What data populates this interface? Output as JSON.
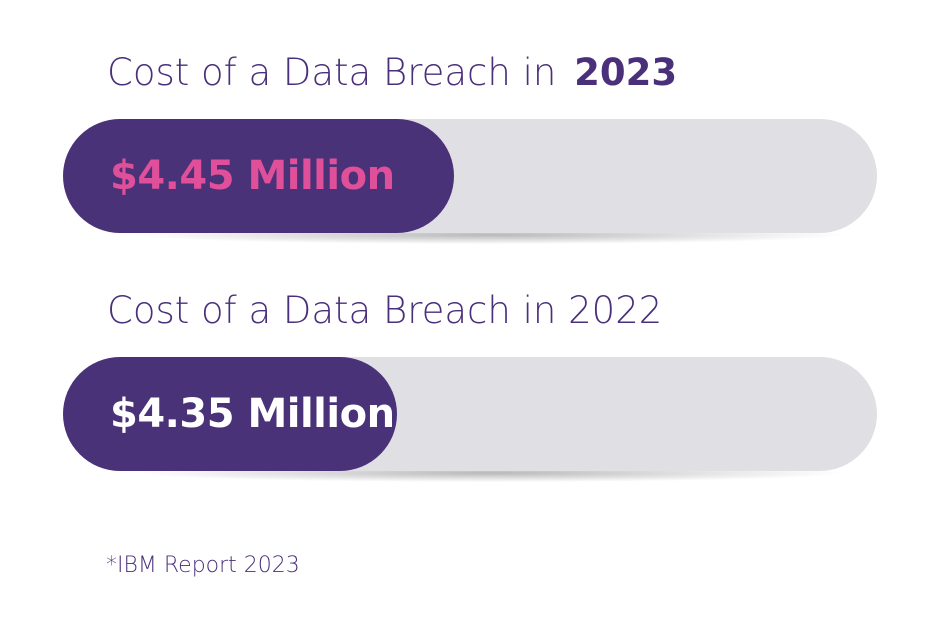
{
  "chart_data": {
    "type": "bar",
    "orientation": "horizontal",
    "categories": [
      "2023",
      "2022"
    ],
    "values": [
      4.45,
      4.35
    ],
    "unit": "Million",
    "bars": [
      {
        "title_prefix": "Cost of a Data Breach in",
        "year": "2023",
        "label": "$4.45 Million",
        "value": 4.45,
        "fill_fraction": 0.48,
        "label_color": "#e0509a",
        "year_bold": true
      },
      {
        "title_prefix": "Cost of a Data Breach in",
        "year": "2022",
        "label": "$4.35 Million",
        "value": 4.35,
        "fill_fraction": 0.41,
        "label_color": "#ffffff",
        "year_bold": false
      }
    ],
    "footnote": "*IBM Report 2023"
  },
  "colors": {
    "bar_fill": "#4a3279",
    "track": "#e0dfe4",
    "title_text": "#4a2f7a",
    "highlight": "#e0509a"
  }
}
